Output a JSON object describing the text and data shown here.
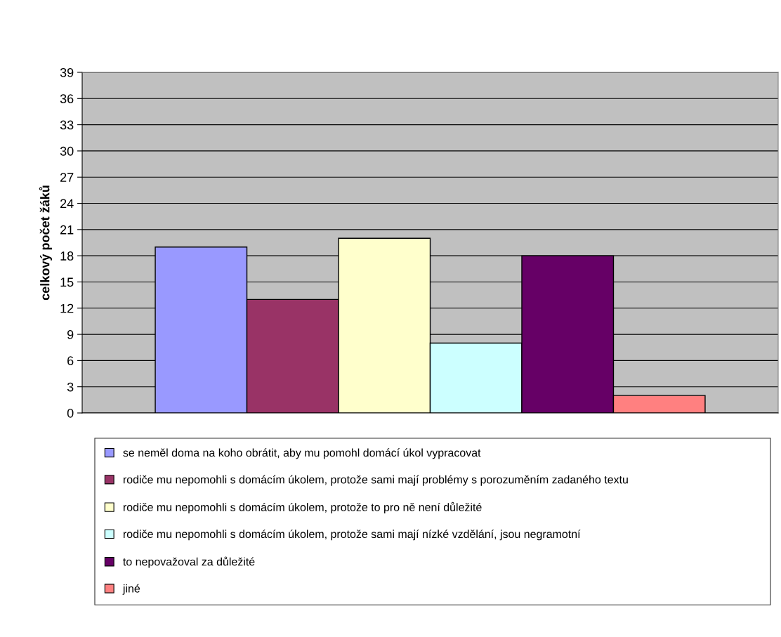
{
  "chart_data": {
    "type": "bar",
    "ylabel": "celkový počet žáků",
    "categories": [
      null
    ],
    "series": [
      {
        "name": "se neměl doma na koho obrátit, aby mu pomohl domácí úkol vypracovat",
        "color": "#9999ff",
        "values": [
          19
        ]
      },
      {
        "name": "rodiče mu nepomohli s domácím úkolem, protože sami mají problémy s porozuměním zadaného textu",
        "color": "#993366",
        "values": [
          13
        ]
      },
      {
        "name": "rodiče mu nepomohli s domácím úkolem, protože to pro ně není důležité",
        "color": "#ffffcc",
        "values": [
          20
        ]
      },
      {
        "name": "rodiče mu nepomohli s domácím úkolem, protože sami mají nízké vzdělání, jsou negramotní",
        "color": "#ccffff",
        "values": [
          8
        ]
      },
      {
        "name": "to nepovažoval za důležité",
        "color": "#660066",
        "values": [
          18
        ]
      },
      {
        "name": "jiné",
        "color": "#ff8080",
        "values": [
          2
        ]
      }
    ],
    "ylim": [
      0,
      39
    ],
    "yticks": [
      0,
      3,
      6,
      9,
      12,
      15,
      18,
      21,
      24,
      27,
      30,
      33,
      36,
      39
    ],
    "grid": "y",
    "legend": "bottom",
    "tick_labels": "y"
  }
}
